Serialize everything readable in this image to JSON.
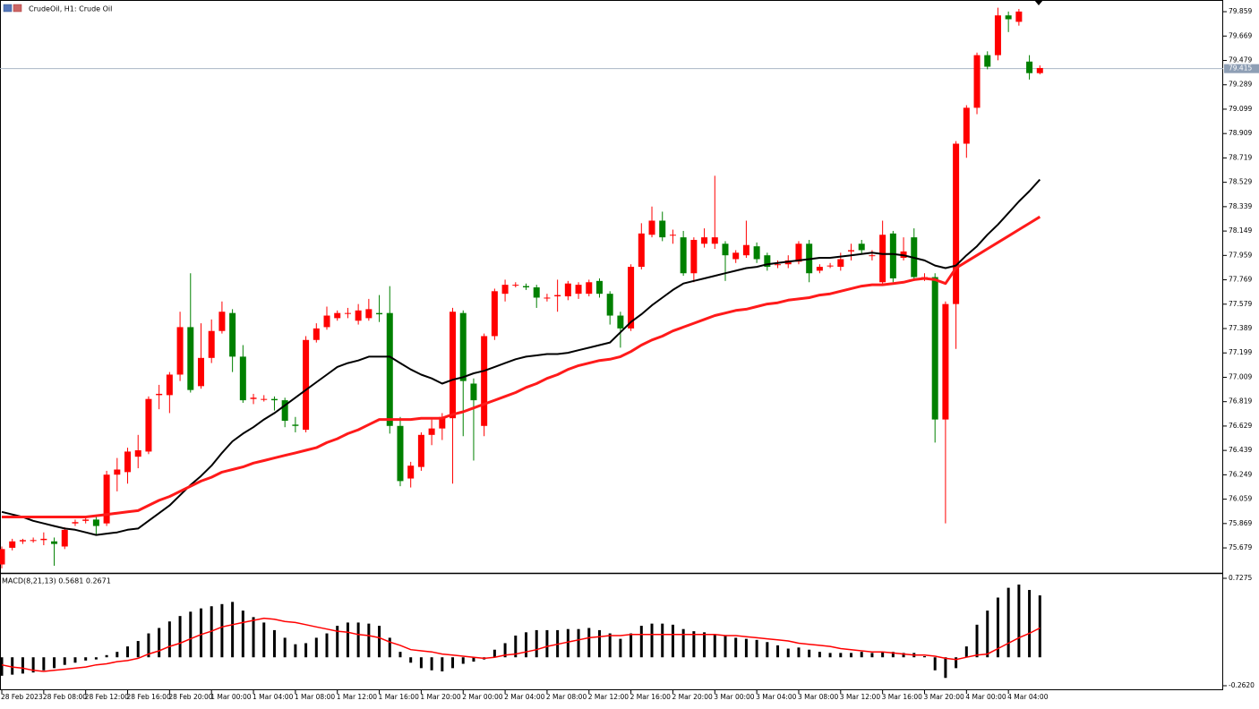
{
  "chart_data": [
    {
      "type": "candlestick",
      "title": "CrudeOil, H1:  Crude Oil",
      "categories": [
        "28 Feb 2023",
        null,
        null,
        null,
        "28 Feb 08:00",
        null,
        null,
        null,
        "28 Feb 12:00",
        null,
        null,
        null,
        "28 Feb 16:00",
        null,
        null,
        null,
        "28 Feb 20:00",
        null,
        null,
        null,
        "1 Mar 00:00",
        null,
        null,
        null,
        "1 Mar 04:00",
        null,
        null,
        null,
        "1 Mar 08:00",
        null,
        null,
        null,
        "1 Mar 12:00",
        null,
        null,
        null,
        "1 Mar 16:00",
        null,
        null,
        null,
        "1 Mar 20:00",
        null,
        null,
        null,
        "2 Mar 00:00",
        null,
        null,
        null,
        "2 Mar 04:00",
        null,
        null,
        null,
        "2 Mar 08:00",
        null,
        null,
        null,
        "2 Mar 12:00",
        null,
        null,
        null,
        "2 Mar 16:00",
        null,
        null,
        null,
        "2 Mar 20:00",
        null,
        null,
        null,
        "3 Mar 00:00",
        null,
        null,
        null,
        "3 Mar 04:00",
        null,
        null,
        null,
        "3 Mar 08:00",
        null,
        null,
        null,
        "3 Mar 12:00",
        null,
        null,
        null,
        "3 Mar 16:00",
        null,
        null,
        null,
        "3 Mar 20:00",
        null,
        null,
        null,
        "4 Mar 00:00",
        null,
        null,
        null,
        "4 Mar 04:00",
        null,
        null,
        null
      ],
      "open": [
        75.55,
        75.68,
        75.73,
        75.74,
        75.74,
        75.73,
        75.69,
        75.87,
        75.89,
        75.9,
        75.87,
        76.25,
        76.27,
        76.39,
        76.43,
        76.87,
        76.87,
        77.03,
        77.4,
        76.94,
        77.16,
        77.37,
        77.51,
        77.17,
        76.84,
        76.84,
        76.84,
        76.83,
        76.64,
        76.6,
        77.3,
        77.4,
        77.47,
        77.51,
        77.45,
        77.47,
        77.51,
        77.51,
        76.63,
        76.22,
        76.31,
        76.56,
        76.61,
        76.69,
        77.51,
        76.96,
        76.63,
        77.33,
        77.66,
        77.73,
        77.72,
        77.71,
        77.63,
        77.64,
        77.64,
        77.66,
        77.66,
        77.76,
        77.66,
        77.49,
        77.39,
        77.87,
        78.12,
        78.23,
        78.12,
        78.1,
        77.82,
        78.05,
        78.05,
        78.05,
        77.93,
        77.96,
        78.03,
        77.96,
        77.89,
        77.89,
        77.91,
        78.05,
        77.84,
        77.88,
        77.87,
        77.99,
        78.05,
        77.96,
        77.75,
        78.13,
        77.94,
        78.1,
        77.79,
        77.79,
        76.68,
        77.58,
        78.83,
        79.11,
        79.52,
        79.52,
        79.83,
        79.78,
        79.47,
        79.38
      ],
      "high": [
        75.69,
        75.75,
        75.75,
        75.76,
        75.8,
        75.76,
        75.84,
        75.9,
        75.92,
        75.92,
        76.28,
        76.38,
        76.46,
        76.56,
        76.86,
        76.95,
        77.05,
        77.52,
        77.82,
        77.43,
        77.46,
        77.6,
        77.54,
        77.26,
        76.88,
        76.87,
        76.86,
        76.85,
        76.7,
        77.33,
        77.43,
        77.56,
        77.53,
        77.55,
        77.58,
        77.62,
        77.65,
        77.72,
        76.7,
        76.35,
        76.58,
        76.68,
        76.73,
        77.55,
        77.53,
        77.0,
        77.35,
        77.7,
        77.77,
        77.75,
        77.74,
        77.73,
        77.66,
        77.77,
        77.76,
        77.75,
        77.77,
        77.78,
        77.68,
        77.52,
        77.89,
        78.21,
        78.34,
        78.3,
        78.16,
        78.15,
        78.1,
        78.17,
        78.58,
        78.07,
        78.0,
        78.23,
        78.06,
        77.98,
        77.92,
        77.96,
        78.07,
        78.08,
        77.89,
        77.9,
        77.98,
        78.05,
        78.08,
        78.0,
        78.23,
        78.15,
        78.1,
        78.17,
        77.82,
        77.82,
        77.6,
        78.85,
        79.13,
        79.54,
        79.55,
        79.89,
        79.86,
        79.88,
        79.52,
        79.44
      ],
      "low": [
        75.52,
        75.66,
        75.71,
        75.72,
        75.7,
        75.54,
        75.67,
        75.85,
        75.87,
        75.78,
        75.85,
        76.12,
        76.18,
        76.3,
        76.41,
        76.76,
        76.73,
        76.98,
        76.89,
        76.92,
        77.12,
        77.35,
        77.05,
        76.81,
        76.8,
        76.82,
        76.75,
        76.62,
        76.58,
        76.58,
        77.28,
        77.38,
        77.45,
        77.47,
        77.42,
        77.45,
        77.44,
        76.57,
        76.16,
        76.15,
        76.28,
        76.48,
        76.52,
        76.18,
        76.55,
        76.36,
        76.55,
        77.3,
        77.6,
        77.71,
        77.69,
        77.55,
        77.6,
        77.52,
        77.61,
        77.62,
        77.64,
        77.63,
        77.42,
        77.24,
        77.37,
        77.85,
        78.1,
        78.07,
        78.05,
        77.8,
        77.75,
        78.02,
        78.01,
        77.76,
        77.9,
        77.94,
        77.9,
        77.84,
        77.86,
        77.86,
        77.89,
        77.75,
        77.82,
        77.86,
        77.84,
        77.92,
        77.97,
        77.92,
        77.73,
        77.75,
        77.92,
        77.76,
        77.76,
        76.5,
        75.87,
        77.23,
        78.72,
        79.06,
        79.41,
        79.48,
        79.7,
        79.75,
        79.33,
        79.37
      ],
      "close": [
        75.67,
        75.73,
        75.74,
        75.74,
        75.75,
        75.71,
        75.82,
        75.88,
        75.9,
        75.85,
        76.25,
        76.29,
        76.43,
        76.44,
        76.84,
        76.88,
        77.03,
        77.4,
        76.91,
        77.16,
        77.37,
        77.52,
        77.17,
        76.83,
        76.85,
        76.84,
        76.83,
        76.67,
        76.63,
        77.3,
        77.39,
        77.49,
        77.51,
        77.51,
        77.53,
        77.54,
        77.5,
        76.63,
        76.2,
        76.32,
        76.56,
        76.61,
        76.7,
        77.52,
        76.98,
        76.83,
        77.33,
        77.68,
        77.73,
        77.73,
        77.71,
        77.63,
        77.63,
        77.65,
        77.74,
        77.73,
        77.75,
        77.66,
        77.49,
        77.39,
        77.87,
        78.13,
        78.23,
        78.1,
        78.12,
        77.82,
        78.08,
        78.1,
        78.1,
        77.96,
        77.98,
        78.04,
        77.93,
        77.87,
        77.89,
        77.92,
        78.05,
        77.82,
        77.87,
        77.88,
        77.93,
        78.0,
        78.0,
        77.96,
        78.12,
        77.78,
        77.99,
        77.79,
        77.79,
        76.68,
        77.58,
        78.83,
        79.11,
        79.52,
        79.43,
        79.83,
        79.8,
        79.86,
        79.38,
        79.42
      ],
      "up_color": "#ff0000",
      "down_color": "#008000",
      "series": [
        {
          "color": "#000000",
          "values": [
            75.96,
            75.94,
            75.92,
            75.89,
            75.87,
            75.85,
            75.83,
            75.82,
            75.8,
            75.78,
            75.79,
            75.8,
            75.82,
            75.83,
            75.89,
            75.95,
            76.01,
            76.09,
            76.17,
            76.24,
            76.32,
            76.42,
            76.51,
            76.57,
            76.62,
            76.68,
            76.73,
            76.79,
            76.85,
            76.91,
            76.97,
            77.03,
            77.09,
            77.12,
            77.14,
            77.17,
            77.17,
            77.17,
            77.12,
            77.07,
            77.03,
            77.0,
            76.96,
            76.99,
            77.01,
            77.04,
            77.06,
            77.09,
            77.12,
            77.15,
            77.17,
            77.18,
            77.19,
            77.19,
            77.2,
            77.22,
            77.24,
            77.26,
            77.28,
            77.36,
            77.44,
            77.5,
            77.57,
            77.63,
            77.69,
            77.74,
            77.76,
            77.78,
            77.8,
            77.82,
            77.84,
            77.86,
            77.87,
            77.89,
            77.9,
            77.91,
            77.92,
            77.93,
            77.94,
            77.94,
            77.95,
            77.96,
            77.97,
            77.98,
            77.97,
            77.97,
            77.96,
            77.94,
            77.92,
            77.88,
            77.86,
            77.88,
            77.96,
            78.03,
            78.12,
            78.2,
            78.29,
            78.38,
            78.46,
            78.55
          ]
        },
        {
          "color": "#ff1a1a",
          "values": [
            75.92,
            75.92,
            75.92,
            75.92,
            75.92,
            75.92,
            75.92,
            75.92,
            75.92,
            75.93,
            75.94,
            75.95,
            75.96,
            75.97,
            76.01,
            76.05,
            76.08,
            76.12,
            76.16,
            76.2,
            76.23,
            76.27,
            76.29,
            76.31,
            76.34,
            76.36,
            76.38,
            76.4,
            76.42,
            76.44,
            76.46,
            76.5,
            76.53,
            76.57,
            76.6,
            76.64,
            76.68,
            76.68,
            76.68,
            76.68,
            76.69,
            76.69,
            76.69,
            76.72,
            76.74,
            76.77,
            76.8,
            76.83,
            76.86,
            76.89,
            76.93,
            76.96,
            77.0,
            77.03,
            77.07,
            77.1,
            77.12,
            77.14,
            77.15,
            77.17,
            77.21,
            77.26,
            77.3,
            77.33,
            77.37,
            77.4,
            77.43,
            77.46,
            77.49,
            77.51,
            77.53,
            77.54,
            77.56,
            77.58,
            77.59,
            77.61,
            77.62,
            77.63,
            77.65,
            77.66,
            77.68,
            77.7,
            77.72,
            77.73,
            77.73,
            77.74,
            77.75,
            77.77,
            77.78,
            77.77,
            77.74,
            77.86,
            77.91,
            77.96,
            78.01,
            78.06,
            78.11,
            78.16,
            78.21,
            78.26
          ]
        }
      ],
      "price_line": 79.415,
      "ylim": [
        75.484,
        79.95
      ],
      "yticks": [
        79.859,
        79.669,
        79.479,
        79.289,
        79.099,
        78.909,
        78.719,
        78.529,
        78.339,
        78.149,
        77.959,
        77.769,
        77.579,
        77.389,
        77.199,
        77.009,
        76.819,
        76.629,
        76.439,
        76.249,
        76.059,
        75.869,
        75.679
      ],
      "grid": false
    },
    {
      "type": "macd",
      "title": "MACD(8,21,13) 0.5681 0.2671",
      "values": [
        -0.17,
        -0.16,
        -0.15,
        -0.14,
        -0.12,
        -0.1,
        -0.07,
        -0.05,
        -0.03,
        -0.02,
        0.02,
        0.05,
        0.1,
        0.15,
        0.22,
        0.27,
        0.33,
        0.38,
        0.42,
        0.45,
        0.47,
        0.49,
        0.51,
        0.43,
        0.37,
        0.32,
        0.25,
        0.18,
        0.12,
        0.13,
        0.18,
        0.22,
        0.29,
        0.32,
        0.32,
        0.31,
        0.29,
        0.18,
        0.05,
        -0.05,
        -0.1,
        -0.12,
        -0.13,
        -0.1,
        -0.06,
        -0.04,
        -0.02,
        0.07,
        0.13,
        0.2,
        0.23,
        0.25,
        0.25,
        0.25,
        0.26,
        0.26,
        0.27,
        0.25,
        0.22,
        0.17,
        0.22,
        0.29,
        0.31,
        0.31,
        0.3,
        0.26,
        0.24,
        0.23,
        0.21,
        0.2,
        0.18,
        0.17,
        0.16,
        0.14,
        0.11,
        0.08,
        0.09,
        0.07,
        0.05,
        0.04,
        0.04,
        0.04,
        0.05,
        0.04,
        0.05,
        0.05,
        0.04,
        0.04,
        0.01,
        -0.12,
        -0.19,
        -0.1,
        0.1,
        0.3,
        0.43,
        0.55,
        0.64,
        0.67,
        0.62,
        0.57
      ],
      "color": "#000000",
      "signal": [
        -0.07,
        -0.09,
        -0.1,
        -0.12,
        -0.13,
        -0.12,
        -0.11,
        -0.1,
        -0.09,
        -0.07,
        -0.06,
        -0.04,
        -0.03,
        -0.01,
        0.03,
        0.06,
        0.1,
        0.13,
        0.17,
        0.21,
        0.24,
        0.28,
        0.3,
        0.32,
        0.34,
        0.36,
        0.35,
        0.33,
        0.32,
        0.3,
        0.28,
        0.26,
        0.24,
        0.23,
        0.21,
        0.2,
        0.18,
        0.14,
        0.11,
        0.07,
        0.06,
        0.05,
        0.03,
        0.02,
        0.01,
        0.0,
        -0.01,
        0.0,
        0.02,
        0.03,
        0.05,
        0.07,
        0.1,
        0.12,
        0.14,
        0.16,
        0.18,
        0.19,
        0.2,
        0.2,
        0.21,
        0.21,
        0.21,
        0.21,
        0.21,
        0.21,
        0.21,
        0.21,
        0.21,
        0.2,
        0.2,
        0.19,
        0.18,
        0.17,
        0.16,
        0.15,
        0.13,
        0.12,
        0.11,
        0.1,
        0.08,
        0.07,
        0.06,
        0.05,
        0.05,
        0.04,
        0.03,
        0.02,
        0.02,
        0.01,
        -0.01,
        -0.02,
        0.0,
        0.02,
        0.03,
        0.08,
        0.13,
        0.18,
        0.22,
        0.27
      ],
      "signal_color": "#ff0000",
      "ylim": [
        -0.3032,
        0.7687
      ],
      "yticks": [
        0.7275,
        {
          "value": -0.262,
          "label": "-0.2620"
        }
      ]
    }
  ]
}
